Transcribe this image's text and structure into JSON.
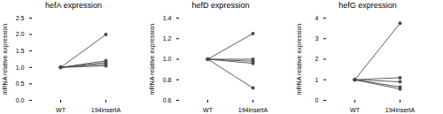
{
  "chart_data": [
    {
      "type": "paired",
      "title": "hefA expression",
      "ylabel": "mRNA relative expression",
      "categories": [
        "WT",
        "194insertA"
      ],
      "series": [
        {
          "values": [
            1.0,
            2.0
          ]
        },
        {
          "values": [
            1.0,
            1.2
          ]
        },
        {
          "values": [
            1.0,
            1.15
          ]
        },
        {
          "values": [
            1.0,
            1.1
          ]
        },
        {
          "values": [
            1.0,
            1.05
          ]
        }
      ],
      "color": "#4a4a4a",
      "marker": "circle",
      "ylim": [
        0.0,
        2.5
      ],
      "yticks": [
        {
          "value": 0.0,
          "label": "0.0"
        },
        0.5,
        {
          "value": 1.0,
          "label": "1.0"
        },
        1.5,
        {
          "value": 2.0,
          "label": "2.0"
        },
        2.5
      ],
      "grid": false
    },
    {
      "type": "paired",
      "title": "hefD expression",
      "ylabel": "mRNA relative expression",
      "categories": [
        "WT",
        "194insertA"
      ],
      "series": [
        {
          "values": [
            1.0,
            1.25
          ]
        },
        {
          "values": [
            1.0,
            1.0
          ]
        },
        {
          "values": [
            1.0,
            0.98
          ]
        },
        {
          "values": [
            1.0,
            0.96
          ]
        },
        {
          "values": [
            1.0,
            0.72
          ]
        }
      ],
      "color": "#4a4a4a",
      "marker": "circle",
      "ylim": [
        0.6,
        1.4
      ],
      "yticks": [
        0.6,
        0.8,
        {
          "value": 1.0,
          "label": "1.0"
        },
        1.2,
        1.4
      ],
      "grid": false
    },
    {
      "type": "paired",
      "title": "hefG expression",
      "ylabel": "mRNA relative expression",
      "categories": [
        "WT",
        "194insertA"
      ],
      "series": [
        {
          "values": [
            1.0,
            3.75
          ]
        },
        {
          "values": [
            1.0,
            1.1
          ]
        },
        {
          "values": [
            1.0,
            0.9
          ]
        },
        {
          "values": [
            1.0,
            0.65
          ]
        },
        {
          "values": [
            1.0,
            0.55
          ]
        }
      ],
      "color": "#4a4a4a",
      "marker": "circle",
      "ylim": [
        0,
        4
      ],
      "yticks": [
        0,
        1,
        2,
        3,
        4
      ],
      "grid": false
    }
  ]
}
